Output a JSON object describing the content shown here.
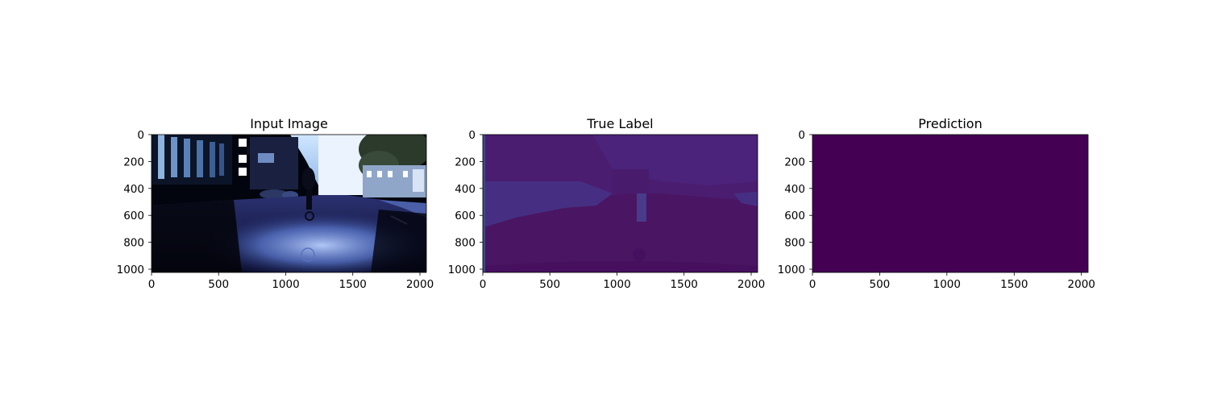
{
  "chart_data": [
    {
      "type": "image",
      "title": "Input Image",
      "xlim": [
        0,
        2048
      ],
      "ylim": [
        1024,
        0
      ],
      "xticks": [
        0,
        500,
        1000,
        1500,
        2000
      ],
      "yticks": [
        0,
        200,
        400,
        600,
        800,
        1000
      ],
      "content": "photo-street-scene-cyclist"
    },
    {
      "type": "heatmap",
      "title": "True Label",
      "xlim": [
        0,
        2048
      ],
      "ylim": [
        1024,
        0
      ],
      "xticks": [
        0,
        500,
        1000,
        1500,
        2000
      ],
      "yticks": [
        0,
        200,
        400,
        600,
        800,
        1000
      ],
      "colormap": "viridis",
      "colors": {
        "road": "#4a1562",
        "sidewalk": "#462f82",
        "building": "#4a1d70",
        "sky": "#4b237a"
      }
    },
    {
      "type": "heatmap",
      "title": "Prediction",
      "xlim": [
        0,
        2048
      ],
      "ylim": [
        1024,
        0
      ],
      "xticks": [
        0,
        500,
        1000,
        1500,
        2000
      ],
      "yticks": [
        0,
        200,
        400,
        600,
        800,
        1000
      ],
      "colormap": "viridis",
      "colors": {
        "fill": "#440154"
      }
    }
  ]
}
